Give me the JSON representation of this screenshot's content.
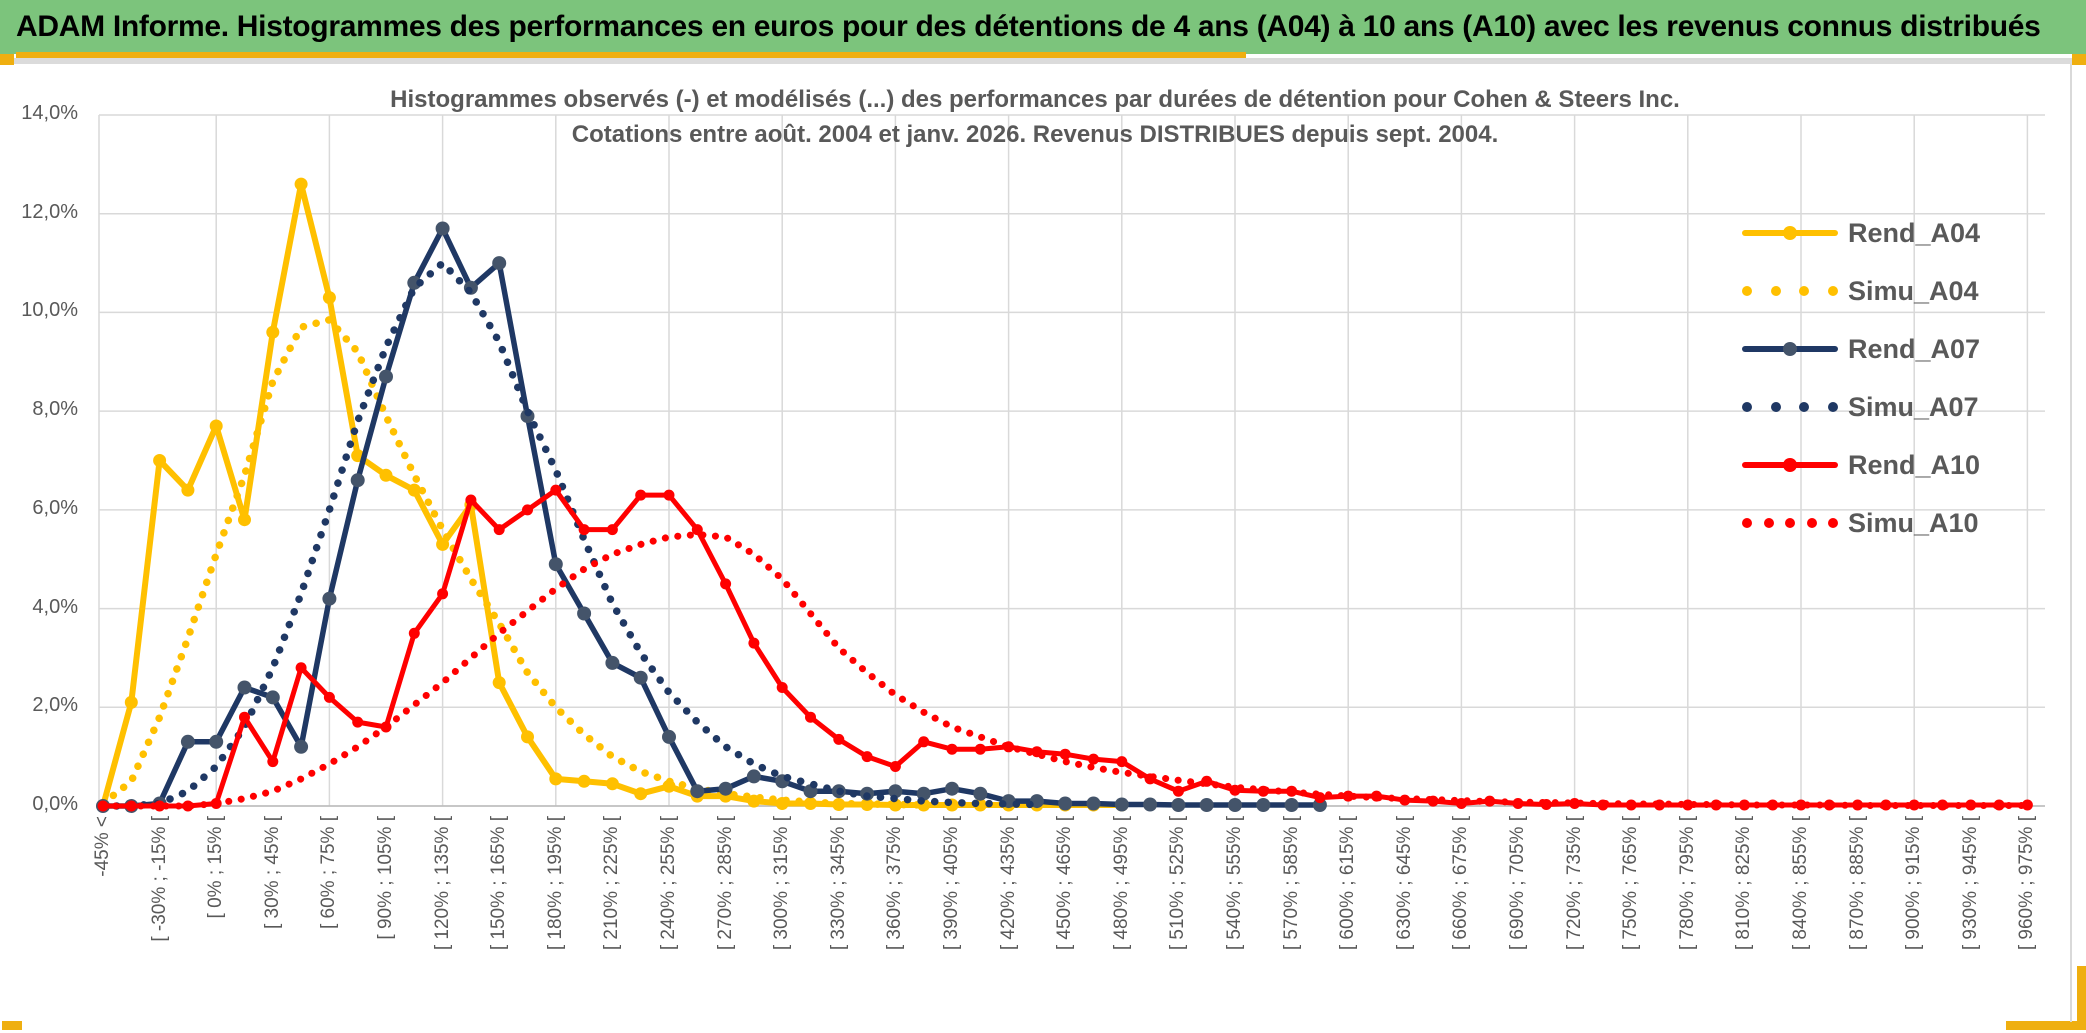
{
  "header": {
    "title": "ADAM Informe. Histogrammes des performances en euros pour des détentions de 4 ans (A04) à 10 ans (A10) avec les revenus connus distribués"
  },
  "colors": {
    "header_green": "#7cc47c",
    "gold_accent": "#efaf10",
    "grid": "#d9d9d9",
    "axis": "#bfbfbf",
    "text_gray": "#595959",
    "gold": "#FFC000",
    "navy": "#1F3864",
    "navy_marker": "#44546A",
    "red": "#FF0000"
  },
  "chart_data": {
    "type": "line",
    "title": "Histogrammes observés (-) et modélisés (...) des performances par durées de détention pour Cohen & Steers Inc.",
    "subtitle": "Cotations entre août. 2004 et janv. 2026. Revenus DISTRIBUES depuis sept. 2004.",
    "xlabel": "",
    "ylabel": "",
    "ylim": [
      0,
      14
    ],
    "grid": true,
    "legend_position": "right",
    "y_tick_labels": [
      "0,0%",
      "2,0%",
      "4,0%",
      "6,0%",
      "8,0%",
      "10,0%",
      "12,0%",
      "14,0%"
    ],
    "x_tick_labels": [
      "-45% <",
      "[ -30% ; -15% [",
      "[ 0% ; 15% [",
      "[ 30% ; 45% [",
      "[ 60% ; 75% [",
      "[ 90% ; 105% [",
      "[ 120% ; 135% [",
      "[ 150% ; 165% [",
      "[ 180% ; 195% [",
      "[ 210% ; 225% [",
      "[ 240% ; 255% [",
      "[ 270% ; 285% [",
      "[ 300% ; 315% [",
      "[ 330% ; 345% [",
      "[ 360% ; 375% [",
      "[ 390% ; 405% [",
      "[ 420% ; 435% [",
      "[ 450% ; 465% [",
      "[ 480% ; 495% [",
      "[ 510% ; 525% [",
      "[ 540% ; 555% [",
      "[ 570% ; 585% [",
      "[ 600% ; 615% [",
      "[ 630% ; 645% [",
      "[ 660% ; 675% [",
      "[ 690% ; 705% [",
      "[ 720% ; 735% [",
      "[ 750% ; 765% [",
      "[ 780% ; 795% [",
      "[ 810% ; 825% [",
      "[ 840% ; 855% [",
      "[ 870% ; 885% [",
      "[ 900% ; 915% [",
      "[ 930% ; 945% [",
      "[ 960% ; 975% ["
    ],
    "x_labels_every_n_bins": 2,
    "series": [
      {
        "name": "Rend_A04",
        "style": "solid",
        "color": "#FFC000",
        "marker_color": "#FFC000",
        "line_width": 6,
        "marker_r": 6.5,
        "values": [
          0,
          2.1,
          7.0,
          6.4,
          7.7,
          5.8,
          9.6,
          12.6,
          10.3,
          7.1,
          6.7,
          6.4,
          5.3,
          6.1,
          2.5,
          1.4,
          0.55,
          0.5,
          0.45,
          0.25,
          0.4,
          0.2,
          0.2,
          0.1,
          0.05,
          0.05,
          0.03,
          0.03,
          0.02,
          0.02,
          0.02,
          0.02,
          0.02,
          0.02,
          0.02,
          0.02,
          0.02
        ]
      },
      {
        "name": "Simu_A04",
        "style": "dotted",
        "color": "#FFC000",
        "line_width": 7.5,
        "dot_gap": 13,
        "values": [
          0.05,
          0.5,
          1.8,
          3.4,
          5.1,
          6.7,
          8.6,
          9.7,
          9.85,
          9.2,
          7.9,
          6.7,
          5.6,
          4.6,
          3.7,
          2.7,
          2.0,
          1.45,
          1.0,
          0.7,
          0.5,
          0.35,
          0.25,
          0.18,
          0.12,
          0.08,
          0.05,
          0.04,
          0.03,
          0.02
        ]
      },
      {
        "name": "Rend_A07",
        "style": "solid",
        "color": "#1F3864",
        "marker_color": "#44546A",
        "line_width": 5.5,
        "marker_r": 7,
        "values": [
          0,
          0,
          0.05,
          1.3,
          1.3,
          2.4,
          2.2,
          1.2,
          4.2,
          6.6,
          8.7,
          10.6,
          11.7,
          10.5,
          11.0,
          7.9,
          4.9,
          3.9,
          2.9,
          2.6,
          1.4,
          0.3,
          0.35,
          0.6,
          0.5,
          0.3,
          0.3,
          0.25,
          0.3,
          0.25,
          0.35,
          0.25,
          0.1,
          0.1,
          0.05,
          0.05,
          0.03,
          0.03,
          0.02,
          0.02,
          0.02,
          0.02,
          0.02,
          0.02
        ]
      },
      {
        "name": "Simu_A07",
        "style": "dotted",
        "color": "#1F3864",
        "line_width": 7.5,
        "dot_gap": 13.5,
        "values": [
          0,
          0,
          0.05,
          0.3,
          0.8,
          1.6,
          2.8,
          4.3,
          6.0,
          7.8,
          9.3,
          10.5,
          11.0,
          10.4,
          9.4,
          8.0,
          6.8,
          5.4,
          4.1,
          3.1,
          2.3,
          1.7,
          1.2,
          0.85,
          0.6,
          0.45,
          0.3,
          0.2,
          0.15,
          0.1,
          0.07,
          0.05,
          0.04,
          0.03
        ]
      },
      {
        "name": "Rend_A10",
        "style": "solid",
        "color": "#FF0000",
        "marker_color": "#FF0000",
        "line_width": 5,
        "marker_r": 5.5,
        "values": [
          0,
          0,
          0,
          0,
          0.05,
          1.8,
          0.9,
          2.8,
          2.2,
          1.7,
          1.6,
          3.5,
          4.3,
          6.2,
          5.6,
          6.0,
          6.4,
          5.6,
          5.6,
          6.3,
          6.3,
          5.6,
          4.5,
          3.3,
          2.4,
          1.8,
          1.35,
          1.0,
          0.8,
          1.3,
          1.15,
          1.15,
          1.2,
          1.1,
          1.05,
          0.95,
          0.9,
          0.55,
          0.3,
          0.5,
          0.32,
          0.3,
          0.3,
          0.17,
          0.2,
          0.2,
          0.12,
          0.1,
          0.05,
          0.1,
          0.05,
          0.03,
          0.05,
          0.02,
          0.02,
          0.02,
          0.02,
          0.02,
          0.02,
          0.02,
          0.02,
          0.02,
          0.02,
          0.02,
          0.02,
          0.02,
          0.02,
          0.02,
          0.02
        ]
      },
      {
        "name": "Simu_A10",
        "style": "dotted",
        "color": "#FF0000",
        "line_width": 7,
        "dot_gap": 12.5,
        "values": [
          0,
          0,
          0,
          0,
          0.05,
          0.15,
          0.3,
          0.55,
          0.85,
          1.2,
          1.6,
          2.05,
          2.5,
          3.0,
          3.5,
          3.95,
          4.4,
          4.8,
          5.1,
          5.3,
          5.45,
          5.5,
          5.45,
          5.1,
          4.6,
          3.9,
          3.2,
          2.7,
          2.25,
          1.9,
          1.6,
          1.4,
          1.2,
          1.05,
          0.9,
          0.78,
          0.68,
          0.6,
          0.52,
          0.45,
          0.38,
          0.33,
          0.28,
          0.24,
          0.2,
          0.17,
          0.15,
          0.13,
          0.11,
          0.09,
          0.08,
          0.07,
          0.06,
          0.05,
          0.04,
          0.04,
          0.03,
          0.03,
          0.02,
          0.02,
          0.02,
          0.02,
          0.01,
          0.01,
          0.01,
          0.01,
          0.01,
          0.01,
          0.01
        ]
      }
    ]
  },
  "legend": {
    "items": [
      {
        "label": "Rend_A04",
        "style": "solid",
        "color": "#FFC000",
        "marker_color": "#FFC000",
        "dots": 0
      },
      {
        "label": "Simu_A04",
        "style": "dotted",
        "color": "#FFC000",
        "marker_color": "#FFC000",
        "dots": 4
      },
      {
        "label": "Rend_A07",
        "style": "solid",
        "color": "#1F3864",
        "marker_color": "#44546A",
        "dots": 0
      },
      {
        "label": "Simu_A07",
        "style": "dotted",
        "color": "#1F3864",
        "marker_color": "#1F3864",
        "dots": 4
      },
      {
        "label": "Rend_A10",
        "style": "solid",
        "color": "#FF0000",
        "marker_color": "#FF0000",
        "dots": 0
      },
      {
        "label": "Simu_A10",
        "style": "dotted",
        "color": "#FF0000",
        "marker_color": "#FF0000",
        "dots": 5
      }
    ]
  }
}
